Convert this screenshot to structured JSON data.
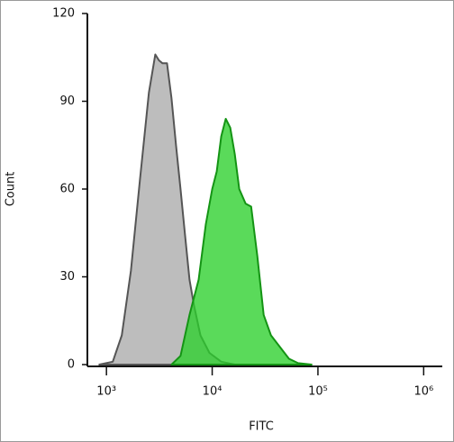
{
  "chart_data": {
    "type": "area",
    "x_label": "FITC",
    "y_label": "Count",
    "xscale": "log",
    "xlim": [
      660,
      1500000
    ],
    "ylim": [
      0,
      120
    ],
    "xticks": [
      {
        "value": 1000,
        "label": "10³"
      },
      {
        "value": 10000,
        "label": "10⁴"
      },
      {
        "value": 100000,
        "label": "10⁵"
      },
      {
        "value": 1000000,
        "label": "10⁶"
      }
    ],
    "yticks": [
      0,
      30,
      60,
      90,
      120
    ],
    "series": [
      {
        "color": "#bdbdbd",
        "line_color": "#555555",
        "x": [
          855,
          1148,
          1397,
          1701,
          2071,
          2521,
          2896,
          3133,
          3388,
          3740,
          4125,
          4550,
          5020,
          5543,
          6109,
          6745,
          7745,
          9420,
          12170,
          16350
        ],
        "values": [
          0,
          1,
          10,
          32,
          63,
          93,
          106,
          104,
          103,
          103,
          91,
          75,
          60,
          44,
          29,
          20,
          10,
          4,
          1,
          0
        ]
      },
      {
        "color": "#2ccf2c",
        "line_color": "#149414",
        "x": [
          4125,
          5020,
          6109,
          7447,
          8710,
          10000,
          11040,
          12170,
          13430,
          14820,
          16350,
          18040,
          20700,
          23330,
          26740,
          30700,
          35970,
          43780,
          53250,
          64860,
          87100
        ],
        "values": [
          0,
          3,
          17,
          29,
          48,
          60,
          66,
          78,
          84,
          81,
          72,
          60,
          55,
          54,
          37,
          17,
          10,
          6,
          2,
          0.5,
          0
        ]
      }
    ]
  }
}
